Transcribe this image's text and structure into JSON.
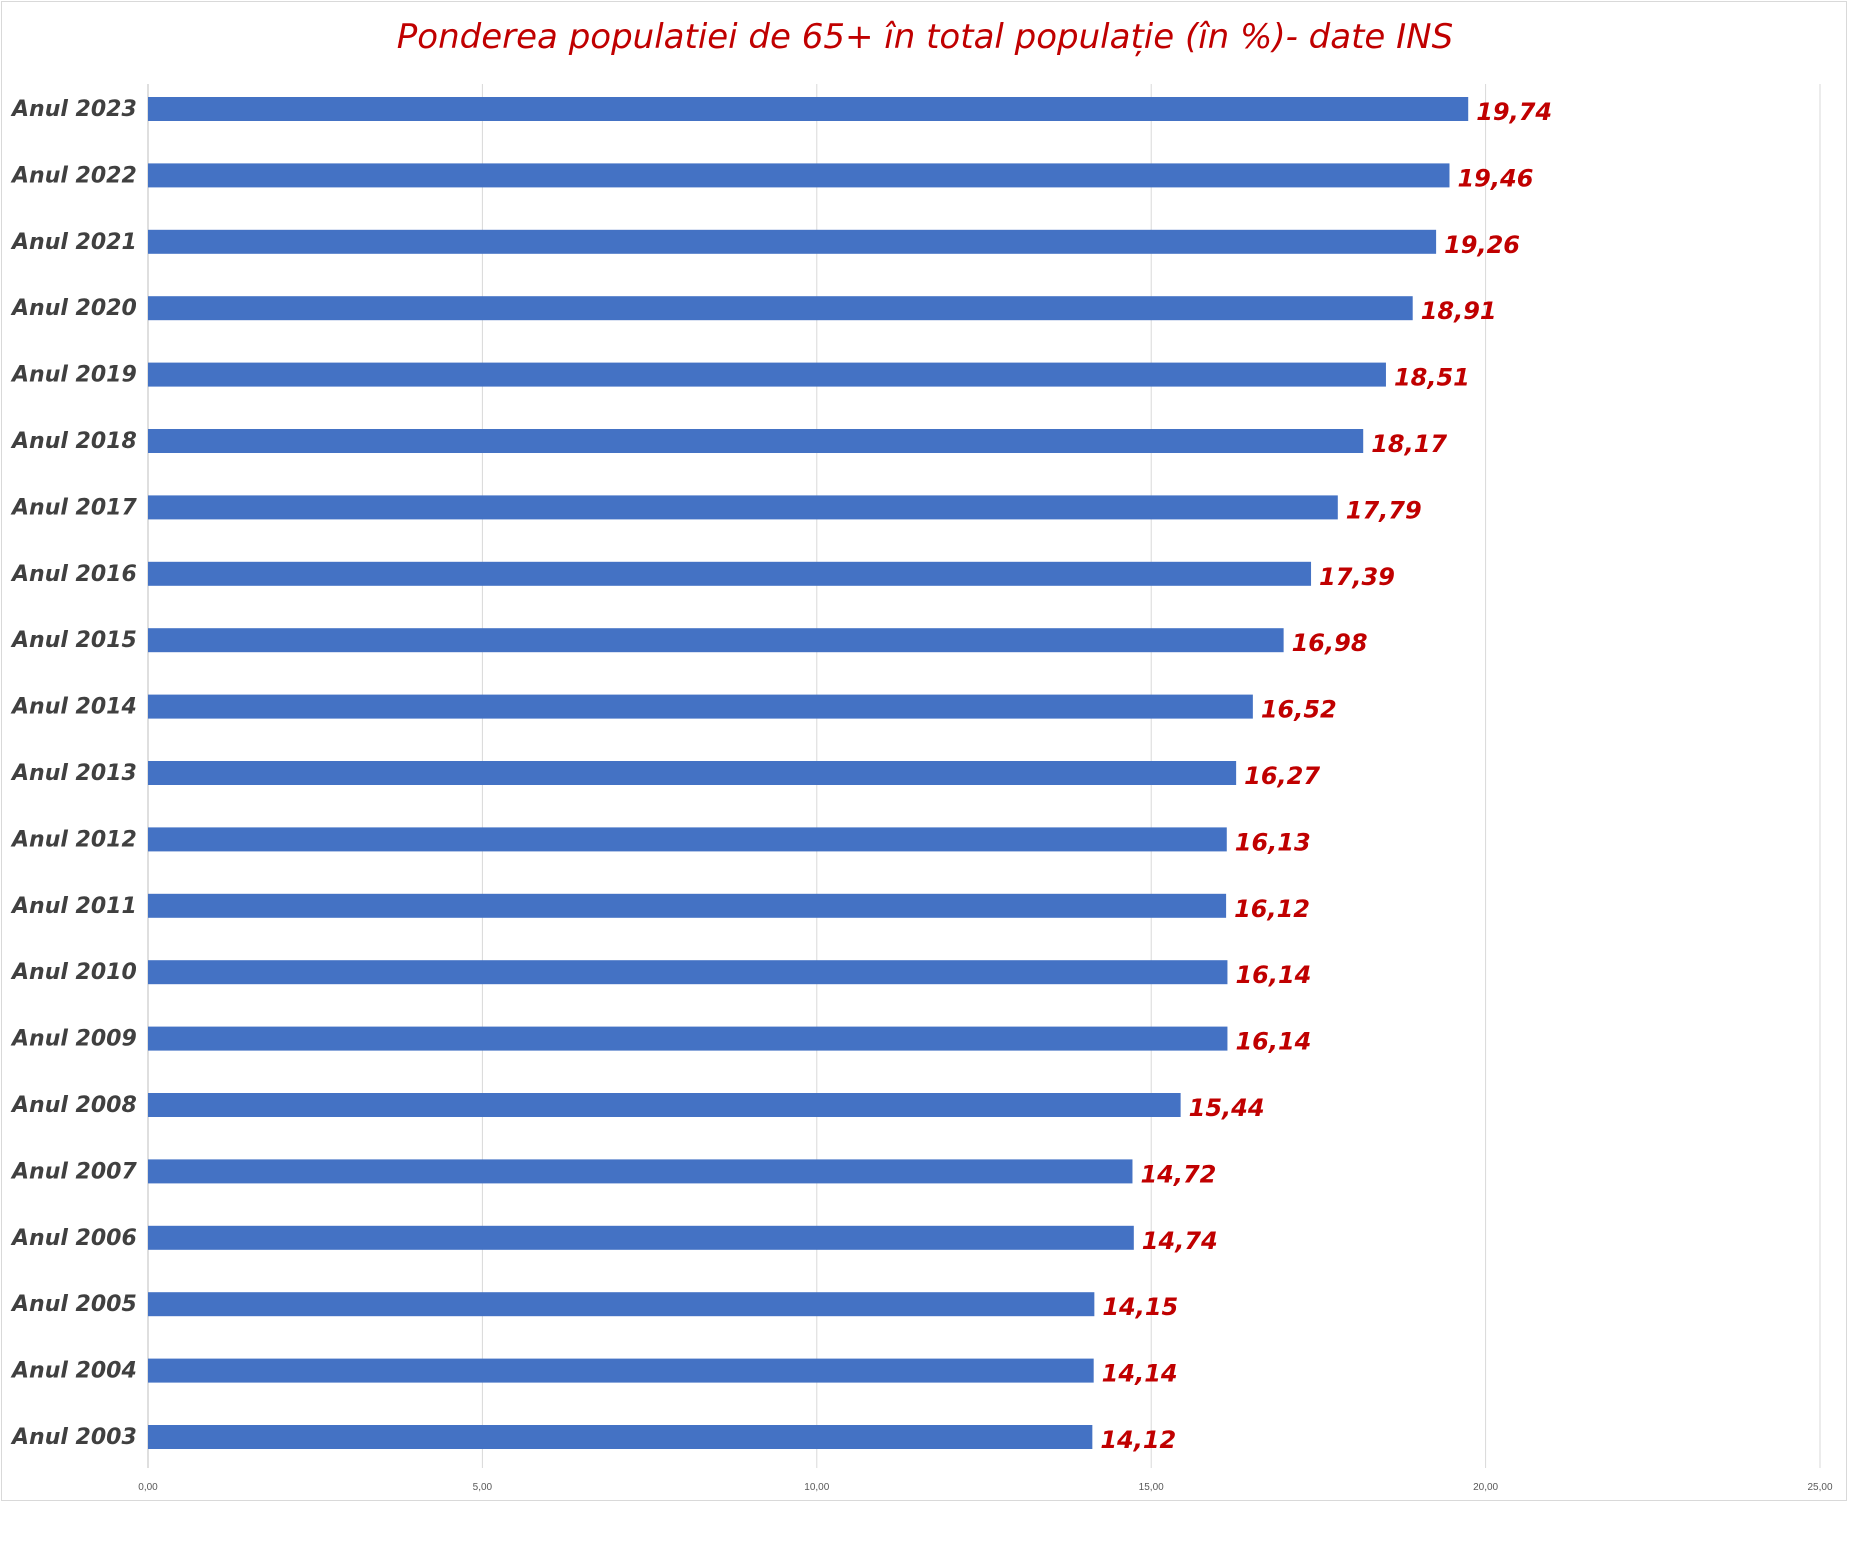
{
  "chart_data": {
    "type": "bar",
    "orientation": "horizontal",
    "title": "Ponderea populatiei de 65+ în total populație (în %)- date INS",
    "xlabel": "",
    "ylabel": "",
    "categories": [
      "Anul 2023",
      "Anul 2022",
      "Anul 2021",
      "Anul 2020",
      "Anul 2019",
      "Anul 2018",
      "Anul 2017",
      "Anul 2016",
      "Anul 2015",
      "Anul 2014",
      "Anul 2013",
      "Anul 2012",
      "Anul 2011",
      "Anul 2010",
      "Anul 2009",
      "Anul 2008",
      "Anul 2007",
      "Anul 2006",
      "Anul 2005",
      "Anul 2004",
      "Anul 2003"
    ],
    "values": [
      19.74,
      19.46,
      19.26,
      18.91,
      18.51,
      18.17,
      17.79,
      17.39,
      16.98,
      16.52,
      16.27,
      16.13,
      16.12,
      16.14,
      16.14,
      15.44,
      14.72,
      14.74,
      14.15,
      14.14,
      14.12
    ],
    "data_labels": [
      "19,74",
      "19,46",
      "19,26",
      "18,91",
      "18,51",
      "18,17",
      "17,79",
      "17,39",
      "16,98",
      "16,52",
      "16,27",
      "16,13",
      "16,12",
      "16,14",
      "16,14",
      "15,44",
      "14,72",
      "14,74",
      "14,15",
      "14,14",
      "14,12"
    ],
    "xlim": [
      0,
      25
    ],
    "x_ticks": [
      0,
      5,
      10,
      15,
      20,
      25
    ],
    "x_tick_labels": [
      "0,00",
      "5,00",
      "10,00",
      "15,00",
      "20,00",
      "25,00"
    ],
    "grid": true,
    "legend": "none",
    "colors": {
      "bar": "#4472c4",
      "title": "#c00000",
      "data_label": "#c00000",
      "category_label": "#404040",
      "gridline": "#d9d9d9"
    }
  }
}
